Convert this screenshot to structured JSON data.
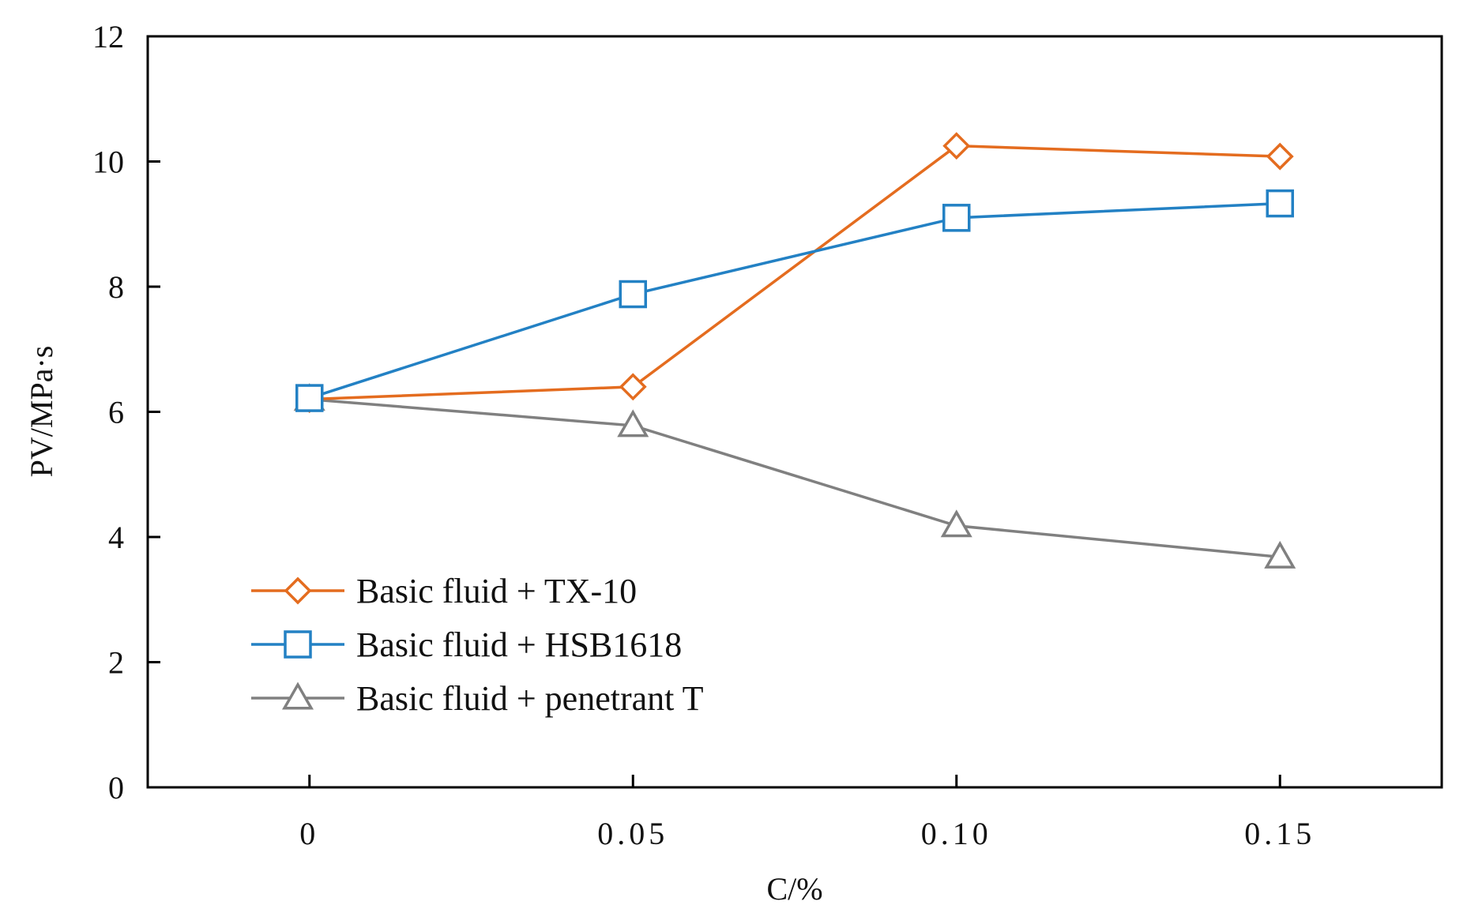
{
  "chart_data": {
    "type": "line",
    "title": "",
    "xlabel": "C/%",
    "ylabel": "PV/MPa·s",
    "x": [
      0,
      0.05,
      0.1,
      0.15
    ],
    "x_tick_labels": [
      "0",
      "0.05",
      "0.10",
      "0.15"
    ],
    "xlim": [
      -0.025,
      0.175
    ],
    "ylim": [
      0,
      12
    ],
    "y_ticks": [
      0,
      2,
      4,
      6,
      8,
      10,
      12
    ],
    "y_tick_labels": [
      "0",
      "2",
      "4",
      "6",
      "8",
      "10",
      "12"
    ],
    "grid": false,
    "legend_position": "lower-left",
    "series": [
      {
        "name": "Basic fluid + TX-10",
        "values": [
          6.2,
          6.4,
          10.25,
          10.08
        ],
        "color": "#E46C1F",
        "marker": "diamond"
      },
      {
        "name": "Basic fluid + HSB1618",
        "values": [
          6.22,
          7.88,
          9.1,
          9.33
        ],
        "color": "#2381C4",
        "marker": "square"
      },
      {
        "name": "Basic fluid + penetrant T",
        "values": [
          6.2,
          5.78,
          4.18,
          3.68
        ],
        "color": "#808080",
        "marker": "triangle"
      }
    ]
  }
}
